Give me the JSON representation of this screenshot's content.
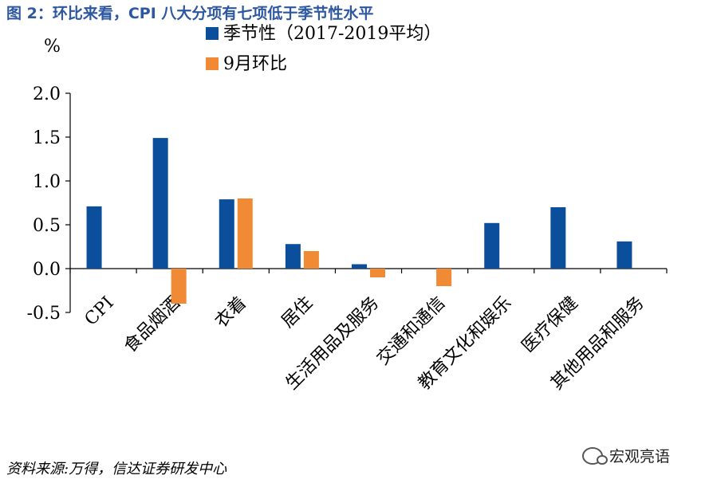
{
  "figure": {
    "title": "图 2：环比来看，CPI 八大分项有七项低于季节性水平",
    "source": "资料来源:万得，信达证券研发中心",
    "watermark": "宏观亮语"
  },
  "chart_data": {
    "type": "bar",
    "ylabel": "%",
    "ylim": [
      -0.5,
      2.0
    ],
    "yticks": [
      2.0,
      1.5,
      1.0,
      0.5,
      0.0,
      -0.5
    ],
    "ytick_labels": [
      "2.0",
      "1.5",
      "1.0",
      "0.5",
      "0.0",
      "-0.5"
    ],
    "grid": false,
    "legend_position": "top-center",
    "categories": [
      "CPI",
      "食品烟酒",
      "衣着",
      "居住",
      "生活用品及服务",
      "交通和通信",
      "教育文化和娱乐",
      "医疗保健",
      "其他用品和服务"
    ],
    "series": [
      {
        "name": "季节性（2017-2019平均）",
        "color": "#0b4f9c",
        "values": [
          0.71,
          1.49,
          0.79,
          0.28,
          0.05,
          0.0,
          0.52,
          0.7,
          0.31
        ]
      },
      {
        "name": "9月环比",
        "color": "#f08a35",
        "values": [
          0.0,
          -0.4,
          0.8,
          0.2,
          -0.1,
          -0.2,
          0.0,
          0.0,
          0.0
        ]
      }
    ]
  }
}
